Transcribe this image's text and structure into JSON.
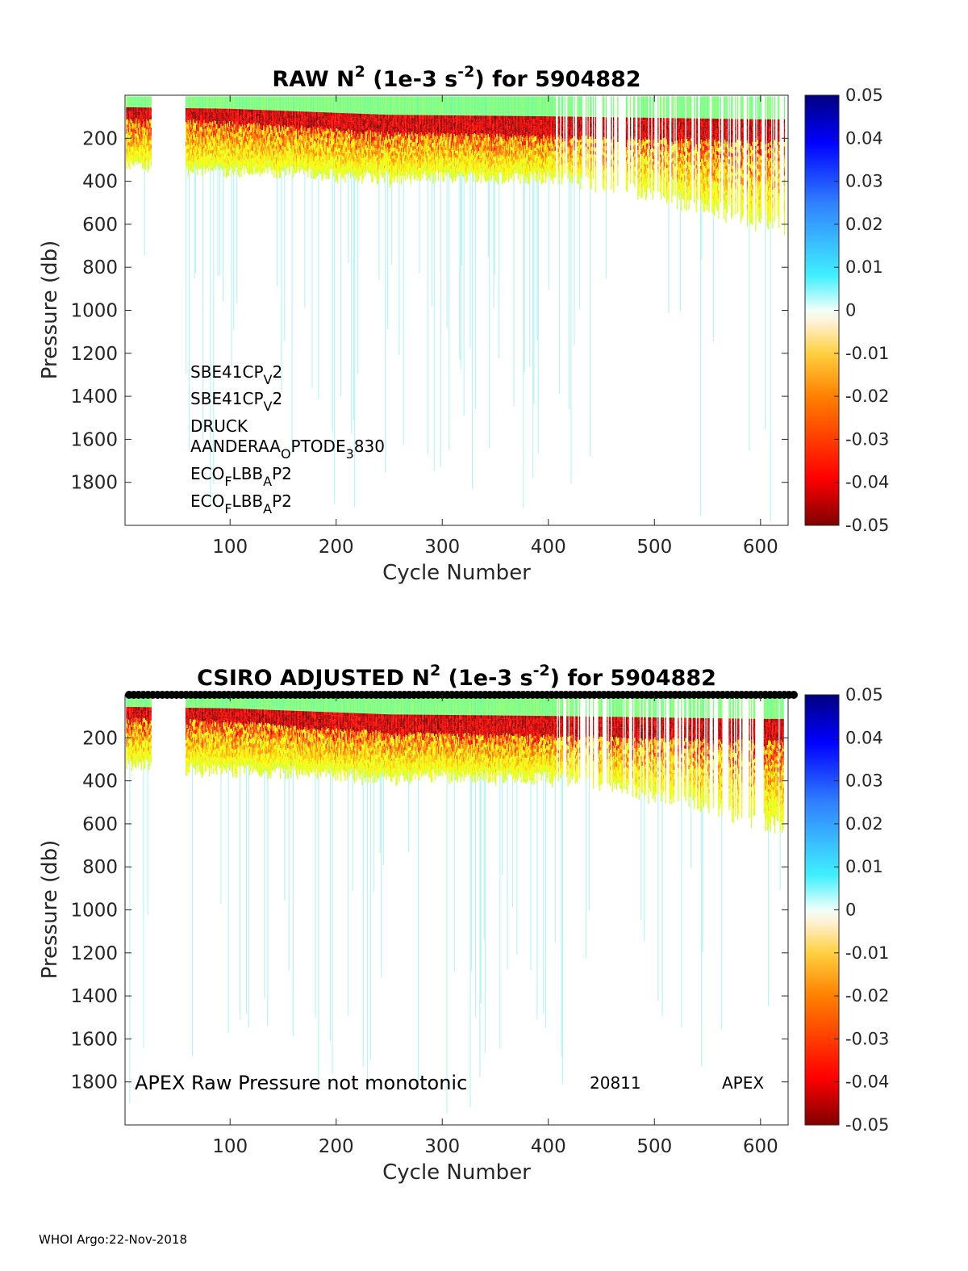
{
  "chart_data": [
    {
      "type": "heatmap",
      "title": "RAW N² (1e-3 s⁻²) for 5904882",
      "title_parts": {
        "pre": "RAW N",
        "sup1": "2",
        "mid": " (1e-3 s",
        "sup2": "-2",
        "post": ") for 5904882"
      },
      "xlabel": "Cycle Number",
      "ylabel": "Pressure (db)",
      "xlim": [
        1,
        626
      ],
      "ylim": [
        2000,
        0
      ],
      "y_reversed": true,
      "x_ticks": [
        "100",
        "200",
        "300",
        "400",
        "500",
        "600"
      ],
      "y_ticks": [
        "200",
        "400",
        "600",
        "800",
        "1000",
        "1200",
        "1400",
        "1600",
        "1800"
      ],
      "colorbar": {
        "min": -0.05,
        "max": 0.05,
        "colormap": "jet",
        "ticks": [
          "0.05",
          "0.04",
          "0.03",
          "0.02",
          "0.01",
          "0",
          "-0.01",
          "-0.02",
          "-0.03",
          "-0.04",
          "-0.05"
        ]
      },
      "sensor_labels": [
        {
          "base": "SBE41CP",
          "sub": "V",
          "tail": "2"
        },
        {
          "base": "SBE41CP",
          "sub": "V",
          "tail": "2"
        },
        {
          "base": "DRUCK",
          "sub": "",
          "tail": ""
        },
        {
          "base": "AANDERAA",
          "sub": "O",
          "tail": "PTODE",
          "sub2": "3",
          "tail2": "830"
        },
        {
          "base": "ECO",
          "sub": "F",
          "tail": "LBB",
          "sub2": "A",
          "tail2": "P2"
        },
        {
          "base": "ECO",
          "sub": "F",
          "tail": "LBB",
          "sub2": "A",
          "tail2": "P2"
        }
      ],
      "data_summary": {
        "dense_profile_base_db": [
          [
            5,
            320
          ],
          [
            20,
            320
          ],
          [
            60,
            340
          ],
          [
            150,
            350
          ],
          [
            250,
            380
          ],
          [
            300,
            370
          ],
          [
            400,
            380
          ],
          [
            460,
            420
          ],
          [
            500,
            460
          ],
          [
            550,
            520
          ],
          [
            600,
            580
          ],
          [
            620,
            600
          ]
        ],
        "high_stratification_band_db": [
          [
            5,
            80
          ],
          [
            100,
            90
          ],
          [
            250,
            130
          ],
          [
            400,
            140
          ],
          [
            600,
            160
          ]
        ]
      }
    },
    {
      "type": "heatmap",
      "title": "CSIRO  ADJUSTED N² (1e-3 s⁻²) for 5904882",
      "title_parts": {
        "pre": "CSIRO  ADJUSTED N",
        "sup1": "2",
        "mid": " (1e-3 s",
        "sup2": "-2",
        "post": ") for 5904882"
      },
      "xlabel": "Cycle Number",
      "ylabel": "Pressure (db)",
      "xlim": [
        1,
        626
      ],
      "ylim": [
        2000,
        0
      ],
      "y_reversed": true,
      "x_ticks": [
        "100",
        "200",
        "300",
        "400",
        "500",
        "600"
      ],
      "y_ticks": [
        "200",
        "400",
        "600",
        "800",
        "1000",
        "1200",
        "1400",
        "1600",
        "1800"
      ],
      "colorbar": {
        "min": -0.05,
        "max": 0.05,
        "colormap": "jet",
        "ticks": [
          "0.05",
          "0.04",
          "0.03",
          "0.02",
          "0.01",
          "0",
          "-0.01",
          "-0.02",
          "-0.03",
          "-0.04",
          "-0.05"
        ]
      },
      "annotations": {
        "left": "APEX",
        "message": "Raw Pressure not monotonic",
        "serial": "20811",
        "platform": "APEX"
      },
      "flag_marker_row": "circles along top edge for all cycles"
    }
  ],
  "footer": "WHOI Argo:22-Nov-2018"
}
